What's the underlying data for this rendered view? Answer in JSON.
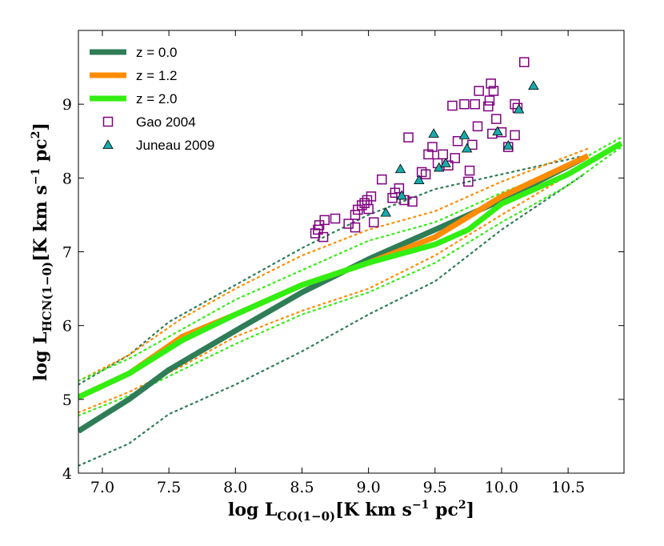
{
  "chart_data": {
    "type": "line",
    "xlabel": {
      "main": "log L",
      "sub": "CO(1−0)",
      "units": "[K km s",
      "exp": "−1",
      "units2": " pc",
      "exp2": "2",
      "close": "]"
    },
    "ylabel": {
      "main": "log L",
      "sub": "HCN(1−0)",
      "units": "[K km s",
      "exp": "−1",
      "units2": " pc",
      "exp2": "2",
      "close": "]"
    },
    "xlim": [
      6.82,
      10.92
    ],
    "ylim": [
      4.0,
      10.0
    ],
    "xticks": [
      "7.0",
      "7.5",
      "8.0",
      "8.5",
      "9.0",
      "9.5",
      "10.0",
      "10.5"
    ],
    "yticks": [
      "4",
      "5",
      "6",
      "7",
      "8",
      "9"
    ],
    "legend_position": "top-left",
    "colors": {
      "z0": "#2e7d57",
      "z12": "#ff8c00",
      "z20": "#33ee11",
      "gao": "#800080",
      "juneau": "#1aaaaa"
    },
    "series": [
      {
        "name": "z = 0.0",
        "color": "#2e7d57",
        "median": [
          [
            6.82,
            4.57
          ],
          [
            7.2,
            5.0
          ],
          [
            7.5,
            5.4
          ],
          [
            8.0,
            5.93
          ],
          [
            8.5,
            6.45
          ],
          [
            9.0,
            6.9
          ],
          [
            9.5,
            7.3
          ],
          [
            10.0,
            7.7
          ],
          [
            10.62,
            8.27
          ]
        ],
        "upper": [
          [
            6.82,
            5.2
          ],
          [
            7.2,
            5.6
          ],
          [
            7.5,
            6.05
          ],
          [
            8.0,
            6.55
          ],
          [
            8.5,
            7.05
          ],
          [
            9.0,
            7.5
          ],
          [
            9.5,
            7.85
          ],
          [
            10.0,
            8.05
          ],
          [
            10.62,
            8.3
          ]
        ],
        "lower": [
          [
            6.82,
            4.1
          ],
          [
            7.2,
            4.4
          ],
          [
            7.5,
            4.8
          ],
          [
            8.0,
            5.2
          ],
          [
            8.5,
            5.65
          ],
          [
            9.0,
            6.15
          ],
          [
            9.5,
            6.6
          ],
          [
            10.0,
            7.3
          ],
          [
            10.62,
            8.05
          ]
        ]
      },
      {
        "name": "z = 1.2",
        "color": "#ff8c00",
        "median": [
          [
            6.82,
            5.03
          ],
          [
            7.2,
            5.35
          ],
          [
            7.6,
            5.85
          ],
          [
            8.0,
            6.15
          ],
          [
            8.5,
            6.55
          ],
          [
            9.0,
            6.85
          ],
          [
            9.5,
            7.2
          ],
          [
            10.0,
            7.75
          ],
          [
            10.65,
            8.3
          ]
        ],
        "upper": [
          [
            6.82,
            5.25
          ],
          [
            7.2,
            5.6
          ],
          [
            7.6,
            6.1
          ],
          [
            8.0,
            6.5
          ],
          [
            8.5,
            6.95
          ],
          [
            9.0,
            7.3
          ],
          [
            9.5,
            7.55
          ],
          [
            10.0,
            7.95
          ],
          [
            10.65,
            8.4
          ]
        ],
        "lower": [
          [
            6.82,
            4.82
          ],
          [
            7.2,
            5.1
          ],
          [
            7.6,
            5.45
          ],
          [
            8.0,
            5.85
          ],
          [
            8.5,
            6.2
          ],
          [
            9.0,
            6.5
          ],
          [
            9.5,
            6.95
          ],
          [
            10.0,
            7.5
          ],
          [
            10.65,
            8.2
          ]
        ]
      },
      {
        "name": "z = 2.0",
        "color": "#33ee11",
        "median": [
          [
            6.82,
            5.03
          ],
          [
            7.2,
            5.35
          ],
          [
            7.6,
            5.8
          ],
          [
            8.0,
            6.15
          ],
          [
            8.5,
            6.55
          ],
          [
            9.0,
            6.85
          ],
          [
            9.5,
            7.1
          ],
          [
            9.75,
            7.3
          ],
          [
            10.0,
            7.65
          ],
          [
            10.5,
            8.05
          ],
          [
            10.9,
            8.47
          ]
        ],
        "upper": [
          [
            6.82,
            5.25
          ],
          [
            7.2,
            5.55
          ],
          [
            7.6,
            5.95
          ],
          [
            8.0,
            6.35
          ],
          [
            8.5,
            6.75
          ],
          [
            9.0,
            7.15
          ],
          [
            9.5,
            7.4
          ],
          [
            10.0,
            7.8
          ],
          [
            10.5,
            8.15
          ],
          [
            10.9,
            8.55
          ]
        ],
        "lower": [
          [
            6.82,
            4.78
          ],
          [
            7.2,
            5.05
          ],
          [
            7.6,
            5.4
          ],
          [
            8.0,
            5.75
          ],
          [
            8.5,
            6.15
          ],
          [
            9.0,
            6.45
          ],
          [
            9.5,
            6.85
          ],
          [
            10.0,
            7.4
          ],
          [
            10.5,
            7.9
          ],
          [
            10.9,
            8.42
          ]
        ]
      }
    ],
    "scatter": [
      {
        "name": "Gao 2004",
        "marker": "square",
        "color": "#800080",
        "points": [
          [
            8.6,
            7.25
          ],
          [
            8.62,
            7.3
          ],
          [
            8.63,
            7.36
          ],
          [
            8.66,
            7.2
          ],
          [
            8.67,
            7.43
          ],
          [
            8.75,
            7.45
          ],
          [
            8.85,
            7.38
          ],
          [
            8.9,
            7.33
          ],
          [
            8.9,
            7.5
          ],
          [
            8.92,
            7.57
          ],
          [
            8.95,
            7.63
          ],
          [
            8.97,
            7.66
          ],
          [
            8.99,
            7.7
          ],
          [
            9.0,
            7.58
          ],
          [
            9.02,
            7.75
          ],
          [
            9.04,
            7.4
          ],
          [
            9.1,
            7.98
          ],
          [
            9.18,
            7.73
          ],
          [
            9.2,
            7.8
          ],
          [
            9.23,
            7.86
          ],
          [
            9.27,
            7.7
          ],
          [
            9.3,
            8.55
          ],
          [
            9.33,
            7.68
          ],
          [
            9.4,
            8.08
          ],
          [
            9.43,
            8.05
          ],
          [
            9.45,
            8.32
          ],
          [
            9.48,
            8.42
          ],
          [
            9.52,
            8.2
          ],
          [
            9.56,
            8.32
          ],
          [
            9.6,
            8.17
          ],
          [
            9.63,
            8.98
          ],
          [
            9.65,
            8.27
          ],
          [
            9.67,
            8.5
          ],
          [
            9.72,
            9.0
          ],
          [
            9.75,
            7.95
          ],
          [
            9.76,
            8.1
          ],
          [
            9.78,
            8.45
          ],
          [
            9.8,
            9.0
          ],
          [
            9.82,
            8.7
          ],
          [
            9.83,
            9.18
          ],
          [
            9.9,
            8.97
          ],
          [
            9.91,
            9.05
          ],
          [
            9.92,
            9.28
          ],
          [
            9.93,
            8.6
          ],
          [
            9.94,
            9.18
          ],
          [
            9.96,
            8.8
          ],
          [
            10.0,
            8.62
          ],
          [
            10.05,
            8.42
          ],
          [
            10.1,
            8.58
          ],
          [
            10.1,
            9.0
          ],
          [
            10.12,
            8.95
          ],
          [
            10.17,
            9.57
          ]
        ]
      },
      {
        "name": "Juneau 2009",
        "marker": "triangle",
        "color": "#1aaaaa",
        "points": [
          [
            9.13,
            7.53
          ],
          [
            9.24,
            8.12
          ],
          [
            9.25,
            7.76
          ],
          [
            9.38,
            7.97
          ],
          [
            9.49,
            8.6
          ],
          [
            9.53,
            8.14
          ],
          [
            9.58,
            8.2
          ],
          [
            9.72,
            8.58
          ],
          [
            9.74,
            8.4
          ],
          [
            9.97,
            8.63
          ],
          [
            10.05,
            8.44
          ],
          [
            10.13,
            8.93
          ],
          [
            10.24,
            9.25
          ]
        ]
      }
    ]
  }
}
